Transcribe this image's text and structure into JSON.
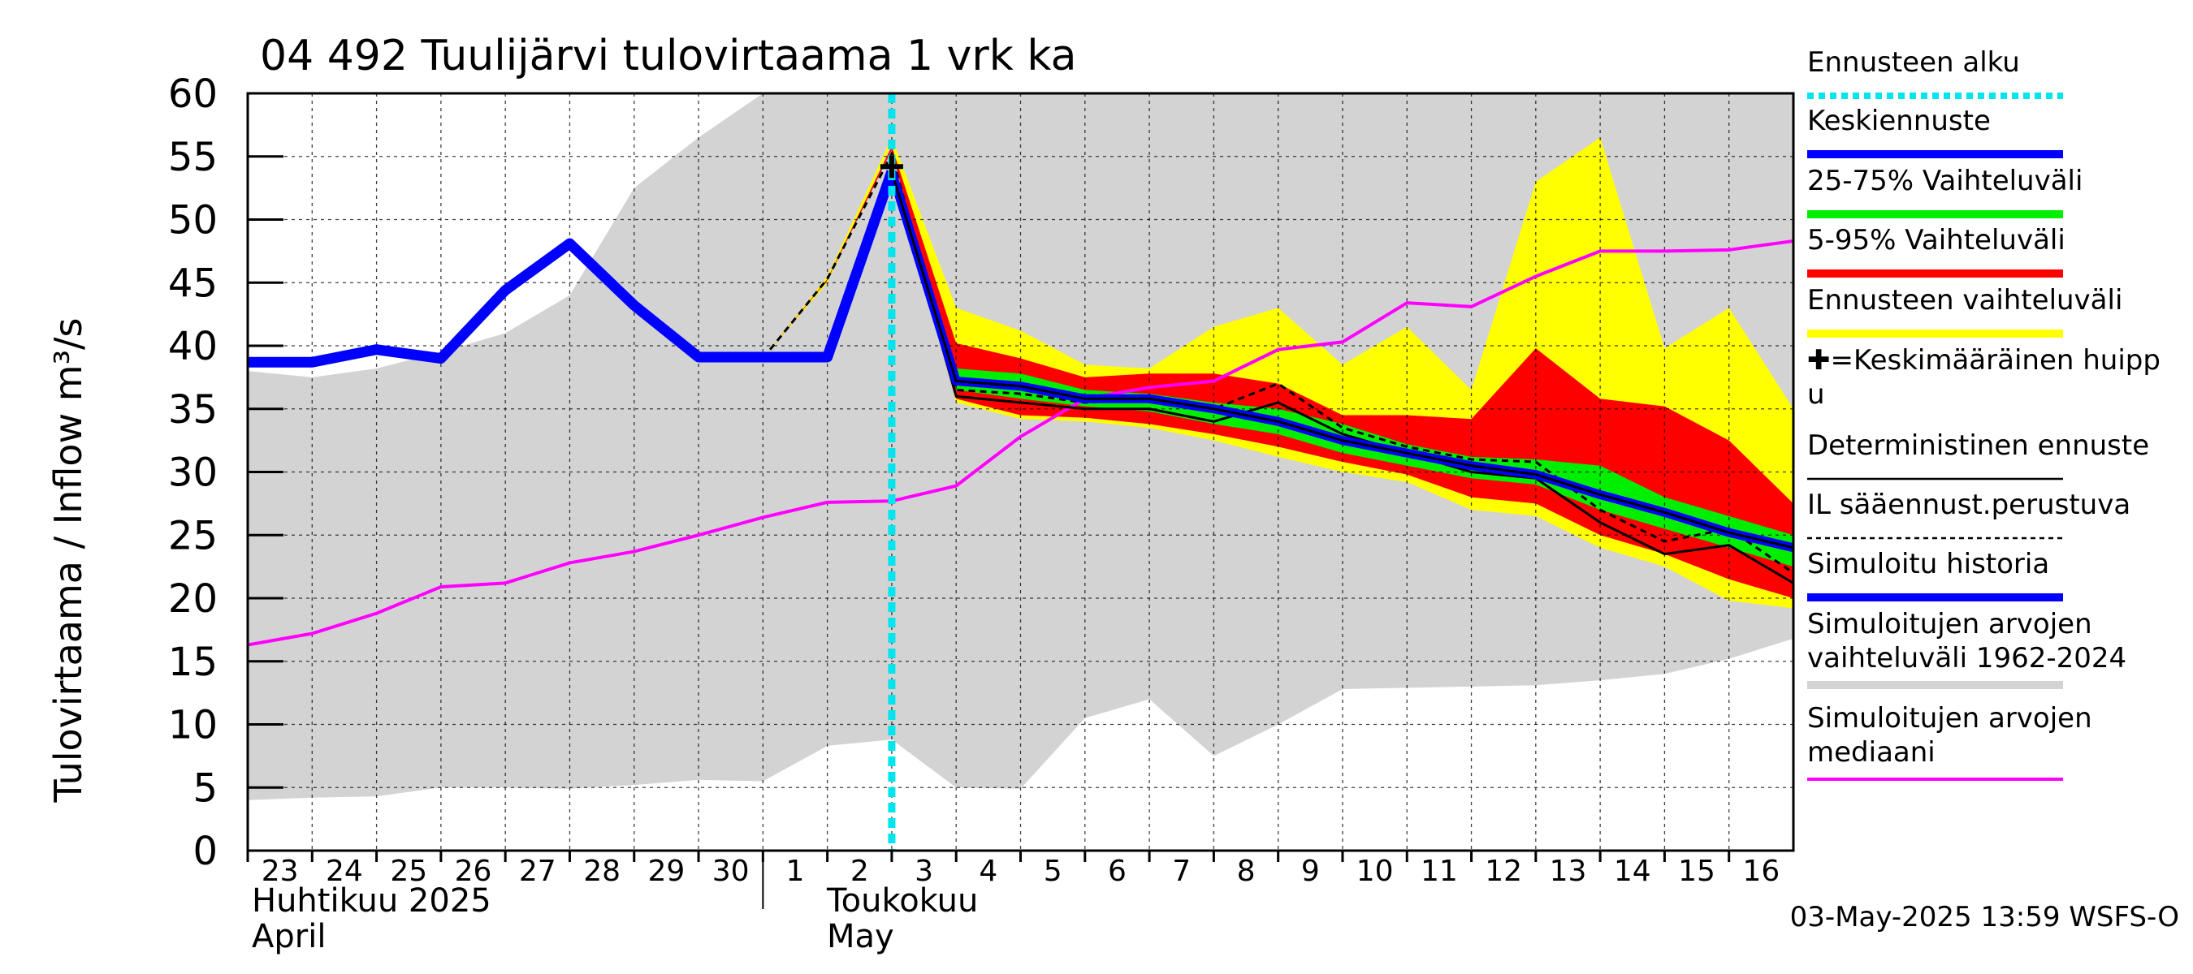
{
  "chart_data": {
    "type": "line",
    "title": "04 492 Tuulijärvi tulovirtaama 1 vrk ka",
    "ylabel": "Tulovirtaama / Inflow    m³/s",
    "ylim": [
      0,
      60
    ],
    "yticks": [
      "0",
      "5",
      "10",
      "15",
      "20",
      "25",
      "30",
      "35",
      "40",
      "45",
      "50",
      "55",
      "60"
    ],
    "xlim": [
      0,
      24
    ],
    "x_tick_labels": [
      "23",
      "24",
      "25",
      "26",
      "27",
      "28",
      "29",
      "30",
      "1",
      "2",
      "3",
      "4",
      "5",
      "6",
      "7",
      "8",
      "9",
      "10",
      "11",
      "12",
      "13",
      "14",
      "15",
      "16"
    ],
    "month_labels": {
      "april_fi": "Huhtikuu  2025",
      "april_en": "April",
      "may_fi": "Toukokuu",
      "may_en": "May"
    },
    "forecast_start_x": 10,
    "footer": "03-May-2025 13:59 WSFS-O",
    "colors": {
      "history": "#0000ff",
      "median": "#ff00ff",
      "range_25_75": "#00ee00",
      "range_5_95": "#ff0000",
      "forecast_range": "#ffff00",
      "sim_range": "#d3d3d3",
      "forecast_start": "#00e5ee",
      "deterministic": "#000000"
    },
    "legend": [
      {
        "label": "Ennusteen alku",
        "style": "dotted-cyan"
      },
      {
        "label": "Keskiennuste",
        "style": "blue"
      },
      {
        "label": "25-75% Vaihteluväli",
        "style": "green"
      },
      {
        "label": "5-95% Vaihteluväli",
        "style": "red"
      },
      {
        "label": "Ennusteen vaihteluväli",
        "style": "yellow"
      },
      {
        "label": "✚=Keskimääräinen huipp",
        "label2": "u",
        "style": "none"
      },
      {
        "label": "Deterministinen ennuste",
        "style": "black-solid"
      },
      {
        "label": "IL sääennust.perustuva",
        "style": "black-dashed"
      },
      {
        "label": "Simuloitu historia",
        "style": "blue"
      },
      {
        "label": "Simuloitujen arvojen",
        "label2": "vaihteluväli 1962-2024",
        "style": "gray"
      },
      {
        "label": "Simuloitujen arvojen",
        "label2": "mediaani",
        "style": "magenta"
      }
    ],
    "series": [
      {
        "name": "Simuloitujen arvojen vaihteluväli 1962-2024",
        "kind": "band",
        "x": [
          0,
          1,
          2,
          3,
          4,
          5,
          6,
          7,
          8,
          9,
          10,
          11,
          12,
          13,
          14,
          15,
          16,
          17,
          18,
          19,
          20,
          21,
          22,
          23,
          24
        ],
        "lower": [
          4.0,
          4.2,
          4.3,
          5.0,
          5.0,
          4.9,
          5.2,
          5.6,
          5.5,
          8.3,
          8.8,
          5.0,
          4.9,
          10.5,
          12.0,
          7.5,
          10.0,
          12.8,
          12.9,
          13.0,
          13.1,
          13.5,
          14.0,
          15.2,
          16.8
        ],
        "upper": [
          38.0,
          37.5,
          38.2,
          39.5,
          41.0,
          44.0,
          52.5,
          56.5,
          60,
          60,
          60,
          60,
          60,
          60,
          60,
          60,
          60,
          60,
          60,
          60,
          60,
          60,
          60,
          60,
          60
        ]
      },
      {
        "name": "Ennusteen vaihteluväli",
        "kind": "band",
        "x": [
          8,
          9,
          10,
          11,
          12,
          13,
          14,
          15,
          16,
          17,
          18,
          19,
          20,
          21,
          22,
          23,
          24
        ],
        "lower": [
          39.0,
          45.0,
          56.0,
          35.5,
          34.2,
          34.0,
          33.5,
          32.5,
          31.2,
          30.0,
          29.2,
          27.0,
          26.5,
          24.0,
          22.5,
          19.8,
          19.2
        ],
        "upper": [
          39.0,
          45.5,
          56.5,
          43.0,
          41.2,
          38.5,
          38.2,
          41.5,
          43.0,
          38.5,
          41.5,
          36.5,
          53.0,
          56.5,
          39.8,
          43.0,
          35.0
        ]
      },
      {
        "name": "5-95% Vaihteluväli",
        "kind": "band",
        "x": [
          8,
          9,
          10,
          11,
          12,
          13,
          14,
          15,
          16,
          17,
          18,
          19,
          20,
          21,
          22,
          23,
          24
        ],
        "lower": [
          39.0,
          45.2,
          55.5,
          35.8,
          34.5,
          34.3,
          33.8,
          33.0,
          32.0,
          30.8,
          29.8,
          28.0,
          27.5,
          25.0,
          23.5,
          21.5,
          20.0
        ],
        "upper": [
          39.0,
          45.3,
          55.8,
          40.2,
          39.0,
          37.5,
          37.8,
          37.8,
          37.0,
          34.5,
          34.5,
          34.2,
          39.8,
          35.8,
          35.2,
          32.5,
          27.5
        ]
      },
      {
        "name": "25-75% Vaihteluväli",
        "kind": "band",
        "x": [
          8,
          9,
          10,
          11,
          12,
          13,
          14,
          15,
          16,
          17,
          18,
          19,
          20,
          21,
          22,
          23,
          24
        ],
        "lower": [
          39.0,
          45.3,
          54.0,
          36.5,
          35.8,
          35.2,
          34.8,
          33.8,
          33.0,
          31.5,
          30.5,
          29.5,
          29.0,
          27.0,
          25.5,
          24.0,
          22.5
        ],
        "upper": [
          39.0,
          45.3,
          54.0,
          38.2,
          37.8,
          36.5,
          36.2,
          35.5,
          35.0,
          33.8,
          32.2,
          31.2,
          31.0,
          30.5,
          28.0,
          26.5,
          25.0
        ]
      },
      {
        "name": "Simuloitujen arvojen mediaani",
        "kind": "line",
        "x": [
          0,
          1,
          2,
          3,
          4,
          5,
          6,
          7,
          8,
          9,
          10,
          11,
          12,
          13,
          14,
          15,
          16,
          17,
          18,
          19,
          20,
          21,
          22,
          23,
          24
        ],
        "y": [
          16.3,
          17.2,
          18.8,
          20.9,
          21.2,
          22.8,
          23.7,
          25.0,
          26.4,
          27.6,
          27.7,
          28.9,
          32.8,
          35.8,
          36.7,
          37.2,
          39.7,
          40.3,
          43.4,
          43.1,
          45.5,
          47.5,
          47.5,
          47.6,
          48.3
        ]
      },
      {
        "name": "IL sääennust.perustuva",
        "kind": "line",
        "x": [
          8,
          9,
          10,
          11,
          12,
          13,
          14,
          15,
          16,
          17,
          18,
          19,
          20,
          21,
          22,
          23,
          24
        ],
        "y": [
          39.0,
          45.3,
          55.2,
          36.5,
          36.2,
          35.5,
          35.8,
          35.0,
          37.0,
          33.5,
          32.0,
          31.0,
          30.8,
          27.0,
          24.5,
          25.5,
          22.0
        ]
      },
      {
        "name": "Deterministinen ennuste",
        "kind": "line",
        "x": [
          10,
          11,
          12,
          13,
          14,
          15,
          16,
          17,
          18,
          19,
          20,
          21,
          22,
          23,
          24
        ],
        "y": [
          54.0,
          36.0,
          35.5,
          35.0,
          35.0,
          34.0,
          35.5,
          33.0,
          31.5,
          30.0,
          29.5,
          26.0,
          23.5,
          24.2,
          21.2
        ]
      },
      {
        "name": "Keskiennuste",
        "kind": "line",
        "x": [
          10,
          11,
          12,
          13,
          14,
          15,
          16,
          17,
          18,
          19,
          20,
          21,
          22,
          23,
          24
        ],
        "y": [
          53.8,
          37.2,
          36.8,
          35.8,
          35.8,
          35.0,
          34.0,
          32.5,
          31.5,
          30.5,
          29.8,
          28.2,
          26.8,
          25.2,
          24.0
        ]
      },
      {
        "name": "Simuloitu historia",
        "kind": "line",
        "x": [
          0,
          1,
          2,
          3,
          4,
          5,
          6,
          7,
          8,
          9,
          10
        ],
        "y": [
          38.7,
          38.7,
          39.7,
          39.0,
          44.4,
          48.1,
          43.2,
          39.1,
          39.1,
          39.1,
          53.8
        ]
      }
    ],
    "peak_marker": {
      "x": 10,
      "y": 54.2,
      "symbol": "+"
    }
  }
}
